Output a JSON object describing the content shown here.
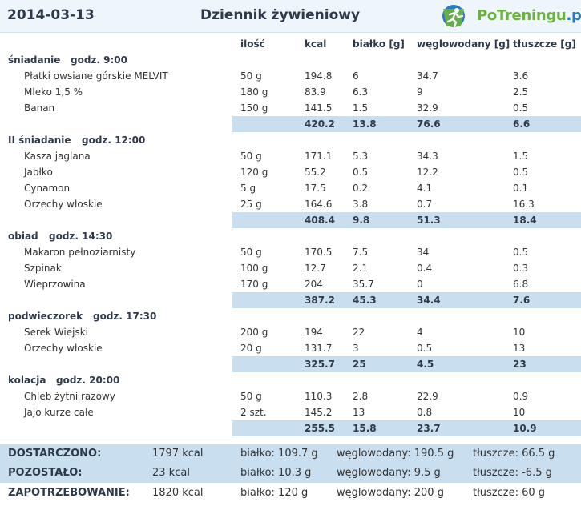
{
  "header": {
    "date": "2014-03-13",
    "title": "Dziennik żywieniowy",
    "logo_text": "PoTreningu",
    "logo_domain": ".pl"
  },
  "columns": [
    "ilość",
    "kcal",
    "białko [g]",
    "węglowodany [g]",
    "tłuszcze [g]"
  ],
  "meals": [
    {
      "name": "śniadanie",
      "time": "godz. 9:00",
      "items": [
        [
          "Płatki owsiane górskie MELVIT",
          "50 g",
          "194.8",
          "6",
          "34.7",
          "3.6"
        ],
        [
          "Mleko  1,5 %",
          "180 g",
          "83.9",
          "6.3",
          "9",
          "2.5"
        ],
        [
          "Banan",
          "150 g",
          "141.5",
          "1.5",
          "32.9",
          "0.5"
        ]
      ],
      "total": [
        "420.2",
        "13.8",
        "76.6",
        "6.6"
      ]
    },
    {
      "name": "II śniadanie",
      "time": "godz. 12:00",
      "items": [
        [
          "Kasza jaglana",
          "50 g",
          "171.1",
          "5.3",
          "34.3",
          "1.5"
        ],
        [
          "Jabłko",
          "120 g",
          "55.2",
          "0.5",
          "12.2",
          "0.5"
        ],
        [
          "Cynamon",
          "5 g",
          "17.5",
          "0.2",
          "4.1",
          "0.1"
        ],
        [
          "Orzechy włoskie",
          "25 g",
          "164.6",
          "3.8",
          "0.7",
          "16.3"
        ]
      ],
      "total": [
        "408.4",
        "9.8",
        "51.3",
        "18.4"
      ]
    },
    {
      "name": "obiad",
      "time": "godz. 14:30",
      "items": [
        [
          "Makaron pełnoziarnisty",
          "50 g",
          "170.5",
          "7.5",
          "34",
          "0.5"
        ],
        [
          "Szpinak",
          "100 g",
          "12.7",
          "2.1",
          "0.4",
          "0.3"
        ],
        [
          "Wieprzowina",
          "170 g",
          "204",
          "35.7",
          "0",
          "6.8"
        ]
      ],
      "total": [
        "387.2",
        "45.3",
        "34.4",
        "7.6"
      ]
    },
    {
      "name": "podwieczorek",
      "time": "godz. 17:30",
      "items": [
        [
          "Serek Wiejski",
          "200 g",
          "194",
          "22",
          "4",
          "10"
        ],
        [
          "Orzechy włoskie",
          "20 g",
          "131.7",
          "3",
          "0.5",
          "13"
        ]
      ],
      "total": [
        "325.7",
        "25",
        "4.5",
        "23"
      ]
    },
    {
      "name": "kolacja",
      "time": "godz. 20:00",
      "items": [
        [
          "Chleb żytni razowy",
          "50 g",
          "110.3",
          "2.8",
          "22.9",
          "0.9"
        ],
        [
          "Jajo kurze całe",
          "2 szt.",
          "145.2",
          "13",
          "0.8",
          "10"
        ]
      ],
      "total": [
        "255.5",
        "15.8",
        "23.7",
        "10.9"
      ]
    }
  ],
  "summary": [
    {
      "label": "DOSTARCZONO:",
      "kcal": "1797 kcal",
      "protein": "białko: 109.7 g",
      "carbs": "węglowodany: 190.5 g",
      "fat": "tłuszcze: 66.5 g"
    },
    {
      "label": "POZOSTAŁO:",
      "kcal": "23 kcal",
      "protein": "białko: 10.3 g",
      "carbs": "węglowodany: 9.5 g",
      "fat": "tłuszcze: -6.5 g"
    },
    {
      "label": "ZAPOTRZEBOWANIE:",
      "kcal": "1820 kcal",
      "protein": "białko: 120 g",
      "carbs": "węglowodany: 200 g",
      "fat": "tłuszcze: 60 g"
    }
  ],
  "colors": {
    "accent_band": "#c9dff0",
    "header_bg": "#eef5fb",
    "logo_green": "#6cb33e",
    "logo_blue": "#2b7bc4"
  }
}
